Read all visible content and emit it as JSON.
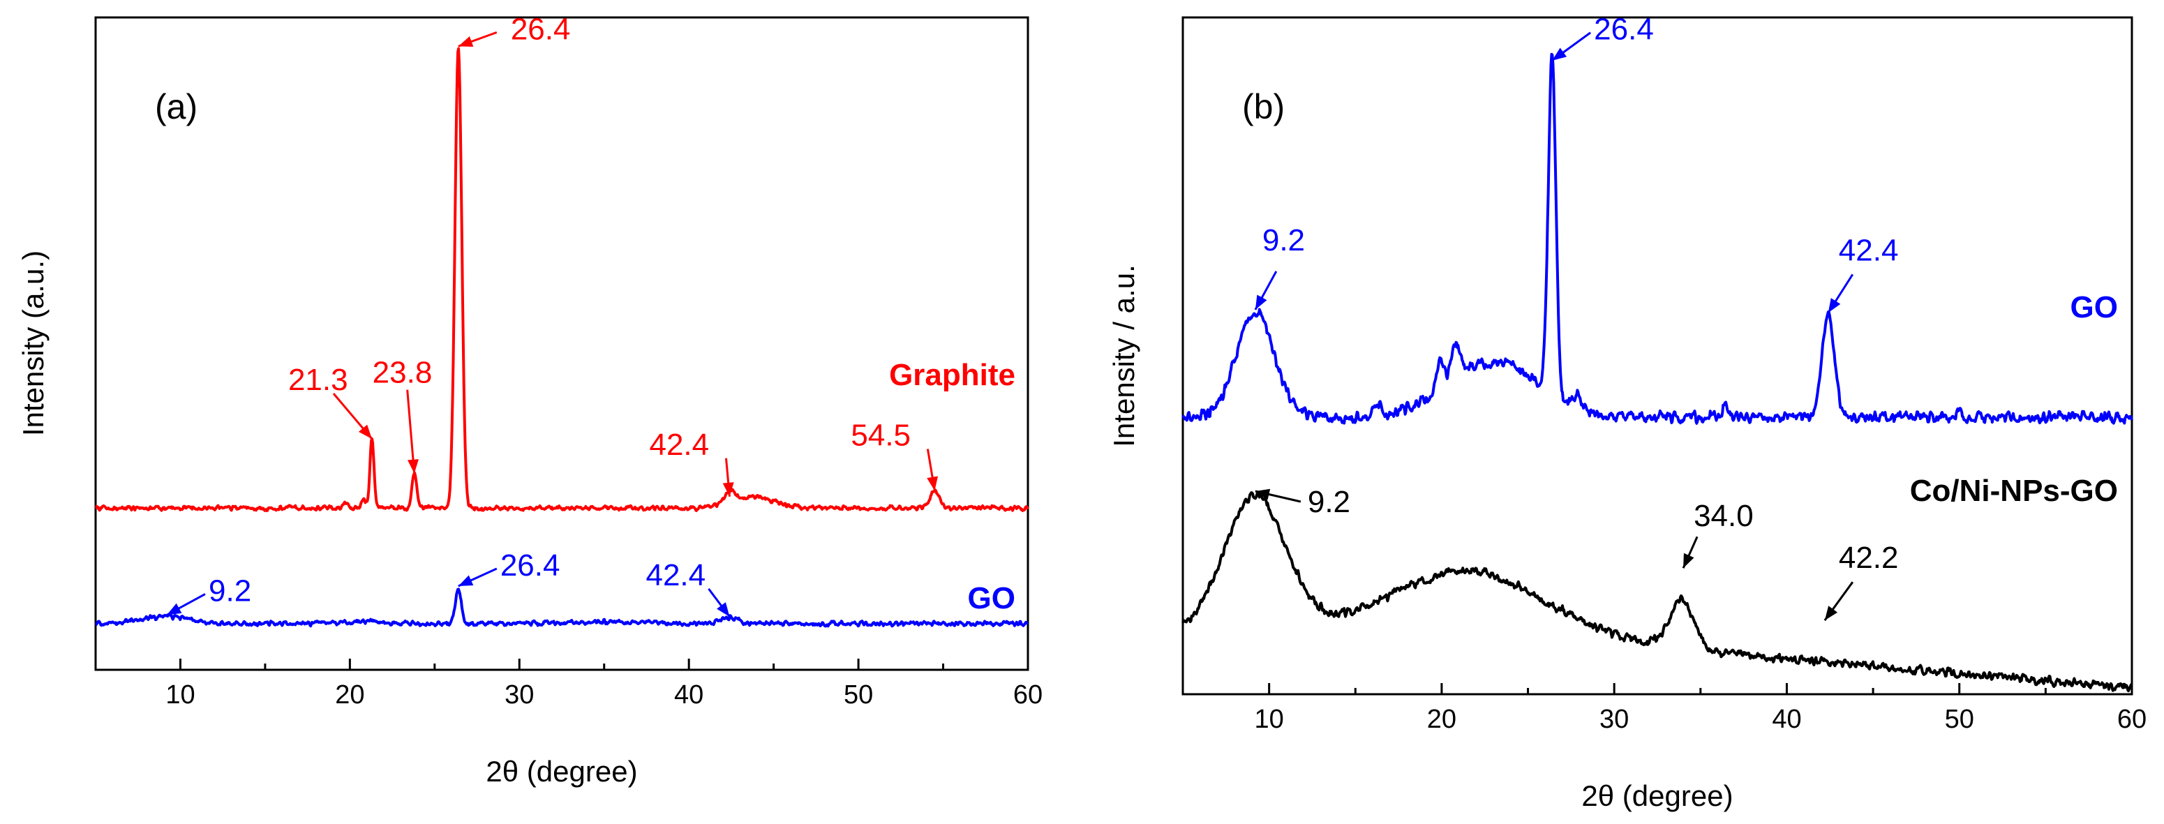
{
  "chart_data": [
    {
      "type": "line",
      "panel_label": "(a)",
      "xlabel": "2θ (degree)",
      "ylabel": "Intensity (a.u.)",
      "xlim": [
        5,
        60
      ],
      "ylim": [
        -0.08,
        1.05
      ],
      "xticks": [
        10,
        20,
        30,
        40,
        50,
        60
      ],
      "xtick_labels": [
        "10",
        "20",
        "30",
        "40",
        "50",
        "60"
      ],
      "grid": false,
      "series": [
        {
          "name": "Graphite",
          "color": "#ff0000",
          "baseline": 0.2,
          "peaks": [
            [
              16.5,
              0.006,
              0.12
            ],
            [
              19.8,
              0.01,
              0.15
            ],
            [
              20.8,
              0.015,
              0.12
            ],
            [
              21.3,
              0.12,
              0.12
            ],
            [
              23.8,
              0.06,
              0.15
            ],
            [
              26.4,
              0.8,
              0.2
            ],
            [
              42.4,
              0.02,
              0.3
            ],
            [
              43.8,
              0.02,
              1.2
            ],
            [
              54.5,
              0.03,
              0.3
            ]
          ],
          "annotations": [
            {
              "text": "21.3",
              "x": 21.3,
              "y": 0.32
            },
            {
              "text": "23.8",
              "x": 23.8,
              "y": 0.26
            },
            {
              "text": "26.4",
              "x": 26.4,
              "y": 1.0
            },
            {
              "text": "42.4",
              "x": 42.4,
              "y": 0.22
            },
            {
              "text": "54.5",
              "x": 54.5,
              "y": 0.23
            }
          ]
        },
        {
          "name": "GO",
          "color": "#0000ff",
          "baseline": 0.0,
          "peaks": [
            [
              9.2,
              0.012,
              1.5
            ],
            [
              20.5,
              0.004,
              1.0
            ],
            [
              26.4,
              0.06,
              0.18
            ],
            [
              35.0,
              0.003,
              2.0
            ],
            [
              42.4,
              0.01,
              0.5
            ]
          ],
          "annotations": [
            {
              "text": "9.2",
              "x": 9.2,
              "y": 0.015
            },
            {
              "text": "26.4",
              "x": 26.4,
              "y": 0.065
            },
            {
              "text": "42.4",
              "x": 42.4,
              "y": 0.012
            }
          ]
        }
      ]
    },
    {
      "type": "line",
      "panel_label": "(b)",
      "xlabel": "2θ (degree)",
      "ylabel": "Intensity / a.u.",
      "xlim": [
        5,
        60
      ],
      "ylim": [
        -0.05,
        1.05
      ],
      "xticks": [
        10,
        20,
        30,
        40,
        50,
        60
      ],
      "xtick_labels": [
        "10",
        "20",
        "30",
        "40",
        "50",
        "60"
      ],
      "grid": false,
      "series": [
        {
          "name": "GO",
          "color": "#0000ff",
          "baseline": 0.4,
          "peaks": [
            [
              9.2,
              0.17,
              1.1
            ],
            [
              16.3,
              0.02,
              0.2
            ],
            [
              19.9,
              0.05,
              0.2
            ],
            [
              20.8,
              0.05,
              0.3
            ],
            [
              23.0,
              0.09,
              2.6
            ],
            [
              26.4,
              0.55,
              0.22
            ],
            [
              27.8,
              0.02,
              0.3
            ],
            [
              36.5,
              0.02,
              0.2
            ],
            [
              42.4,
              0.17,
              0.35
            ],
            [
              50.0,
              0.015,
              0.15
            ]
          ],
          "annotations": [
            {
              "text": "9.2",
              "x": 9.2,
              "y": 0.575
            },
            {
              "text": "26.4",
              "x": 26.4,
              "y": 0.98
            },
            {
              "text": "42.4",
              "x": 42.4,
              "y": 0.57
            }
          ]
        },
        {
          "name": "Co/Ni-NPs-GO",
          "color": "#000000",
          "baseline": 0.05,
          "peaks": [
            [
              9.2,
              0.22,
              1.8
            ],
            [
              21.5,
              0.1,
              4.5
            ],
            [
              33.9,
              0.08,
              0.7
            ]
          ],
          "annotations": [
            {
              "text": "9.2",
              "x": 9.2,
              "y": 0.28
            },
            {
              "text": "34.0",
              "x": 34.0,
              "y": 0.155
            },
            {
              "text": "42.2",
              "x": 42.2,
              "y": 0.07
            }
          ]
        }
      ]
    }
  ]
}
